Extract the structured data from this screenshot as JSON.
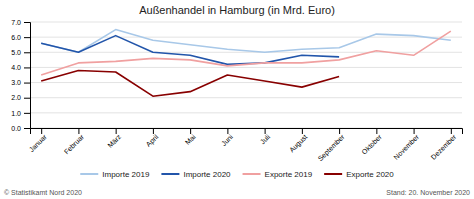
{
  "chart_data": {
    "type": "line",
    "title": "Außenhandel in Hamburg (in Mrd. Euro)",
    "categories": [
      "Januar",
      "Februar",
      "März",
      "April",
      "Mai",
      "Juni",
      "Juli",
      "August",
      "September",
      "Oktober",
      "November",
      "Dezember"
    ],
    "series": [
      {
        "name": "Importe 2019",
        "color": "#a8c8e8",
        "values": [
          5.6,
          5.0,
          6.5,
          5.8,
          5.5,
          5.2,
          5.0,
          5.2,
          5.3,
          6.2,
          6.1,
          5.8
        ]
      },
      {
        "name": "Importe 2020",
        "color": "#2255aa",
        "values": [
          5.6,
          5.0,
          6.1,
          5.0,
          4.8,
          4.2,
          4.3,
          4.8,
          4.7,
          null,
          null,
          null
        ]
      },
      {
        "name": "Exporte 2019",
        "color": "#f0a0a0",
        "values": [
          3.5,
          4.3,
          4.4,
          4.6,
          4.5,
          4.1,
          4.3,
          4.3,
          4.5,
          5.1,
          4.8,
          6.4
        ]
      },
      {
        "name": "Exporte 2020",
        "color": "#880000",
        "values": [
          3.1,
          3.8,
          3.7,
          2.1,
          2.4,
          3.5,
          3.1,
          2.7,
          3.4,
          null,
          null,
          null
        ]
      }
    ],
    "ylim": [
      0.0,
      7.0
    ],
    "yticks": [
      {
        "value": 0,
        "label": "0.0"
      },
      {
        "value": 1,
        "label": "1.0"
      },
      {
        "value": 2,
        "label": "2.0"
      },
      {
        "value": 3,
        "label": "3.0"
      },
      {
        "value": 4,
        "label": "4.0"
      },
      {
        "value": 5,
        "label": "5.0"
      },
      {
        "value": 6,
        "label": "6.0"
      },
      {
        "value": 7,
        "label": "7.0"
      }
    ],
    "grid": true,
    "legend": "bottom",
    "annotations": [
      "© Statistikamt Nord 2020",
      "Stand: 20. November 2020"
    ]
  }
}
